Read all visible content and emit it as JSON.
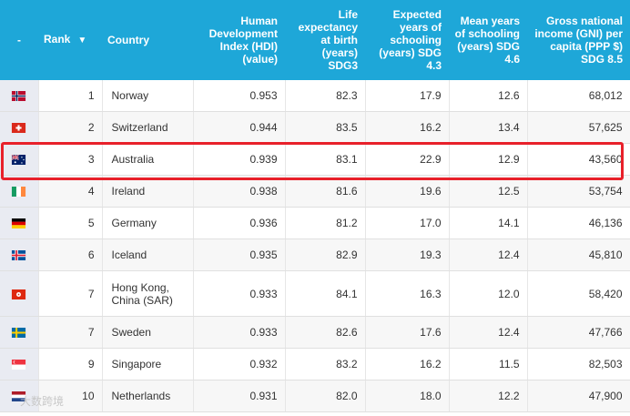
{
  "header": {
    "flag_col": "-",
    "rank": "Rank",
    "country": "Country",
    "hdi": "Human Development Index (HDI) (value)",
    "life": "Life expectancy at birth (years) SDG3",
    "expected": "Expected years of schooling (years) SDG 4.3",
    "mean": "Mean years of schooling (years) SDG 4.6",
    "gni": "Gross national income (GNI) per capita (PPP $) SDG 8.5",
    "sort_icon": "sort-down-icon"
  },
  "rows": [
    {
      "flag": "norway-flag-icon",
      "rank": "1",
      "country": "Norway",
      "hdi": "0.953",
      "life": "82.3",
      "expected": "17.9",
      "mean": "12.6",
      "gni": "68,012"
    },
    {
      "flag": "switzerland-flag-icon",
      "rank": "2",
      "country": "Switzerland",
      "hdi": "0.944",
      "life": "83.5",
      "expected": "16.2",
      "mean": "13.4",
      "gni": "57,625"
    },
    {
      "flag": "australia-flag-icon",
      "rank": "3",
      "country": "Australia",
      "hdi": "0.939",
      "life": "83.1",
      "expected": "22.9",
      "mean": "12.9",
      "gni": "43,560"
    },
    {
      "flag": "ireland-flag-icon",
      "rank": "4",
      "country": "Ireland",
      "hdi": "0.938",
      "life": "81.6",
      "expected": "19.6",
      "mean": "12.5",
      "gni": "53,754"
    },
    {
      "flag": "germany-flag-icon",
      "rank": "5",
      "country": "Germany",
      "hdi": "0.936",
      "life": "81.2",
      "expected": "17.0",
      "mean": "14.1",
      "gni": "46,136"
    },
    {
      "flag": "iceland-flag-icon",
      "rank": "6",
      "country": "Iceland",
      "hdi": "0.935",
      "life": "82.9",
      "expected": "19.3",
      "mean": "12.4",
      "gni": "45,810"
    },
    {
      "flag": "hong-kong-flag-icon",
      "rank": "7",
      "country": "Hong Kong, China (SAR)",
      "hdi": "0.933",
      "life": "84.1",
      "expected": "16.3",
      "mean": "12.0",
      "gni": "58,420"
    },
    {
      "flag": "sweden-flag-icon",
      "rank": "7",
      "country": "Sweden",
      "hdi": "0.933",
      "life": "82.6",
      "expected": "17.6",
      "mean": "12.4",
      "gni": "47,766"
    },
    {
      "flag": "singapore-flag-icon",
      "rank": "9",
      "country": "Singapore",
      "hdi": "0.932",
      "life": "83.2",
      "expected": "16.2",
      "mean": "11.5",
      "gni": "82,503"
    },
    {
      "flag": "netherlands-flag-icon",
      "rank": "10",
      "country": "Netherlands",
      "hdi": "0.931",
      "life": "82.0",
      "expected": "18.0",
      "mean": "12.2",
      "gni": "47,900"
    }
  ],
  "highlighted_row": "Australia",
  "watermark": "大数跨境",
  "colors": {
    "header_bg": "#1ea7d8",
    "highlight": "#e8202a"
  }
}
